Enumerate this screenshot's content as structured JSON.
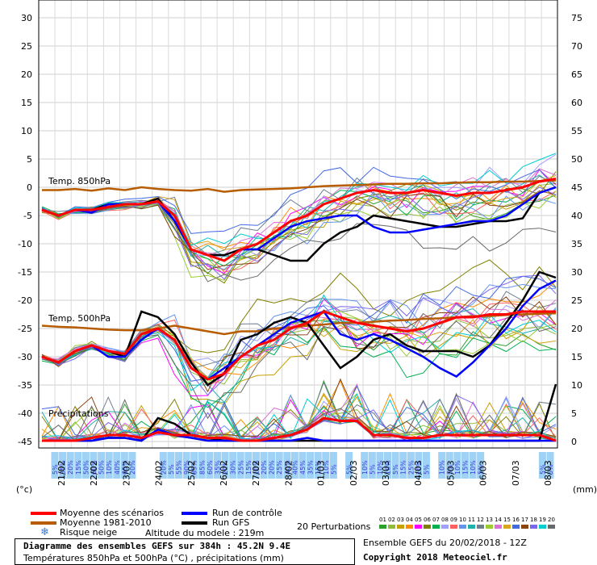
{
  "chart_data": {
    "type": "line",
    "left_axis_unit": "(°c)",
    "right_axis_unit": "(mm)",
    "left_ticks": [
      "30",
      "25",
      "20",
      "15",
      "10",
      "5",
      "0",
      "-5",
      "-10",
      "-15",
      "-20",
      "-25",
      "-30",
      "-35",
      "-40",
      "-45"
    ],
    "right_ticks": [
      "75",
      "70",
      "65",
      "60",
      "55",
      "50",
      "45",
      "40",
      "35",
      "30",
      "25",
      "20",
      "15",
      "10",
      "5",
      "0"
    ],
    "dates": [
      "21/02",
      "22/02",
      "23/02",
      "24/02",
      "25/02",
      "26/02",
      "27/02",
      "28/02",
      "01/03",
      "02/03",
      "03/03",
      "04/03",
      "05/03",
      "06/03",
      "07/03",
      "08/03"
    ],
    "section_labels": {
      "t850": "Temp. 850hPa",
      "t500": "Temp. 500hPa",
      "precip": "Précipitations"
    },
    "snow_risk": [
      "5%",
      "35%",
      "20%",
      "15%",
      "50%",
      "60%",
      "50%",
      "10%",
      "40%",
      "65%",
      "20%",
      "",
      "",
      "",
      "20%",
      "5%",
      "55%",
      "90%",
      "85%",
      "85%",
      "60%",
      "35%",
      "20%",
      "30%",
      "25%",
      "15%",
      "10%",
      "20%",
      "20%",
      "25%",
      "40%",
      "40%",
      "45%",
      "35%",
      "15%",
      "10%",
      "5%",
      "",
      "5%",
      "",
      "10%",
      "5%",
      "10%",
      "10%",
      "5%",
      "15%",
      "25%",
      "10%",
      "5%",
      "",
      "10%",
      "5%",
      "10%",
      "15%",
      "10%",
      "5%",
      "",
      "",
      "",
      "",
      "",
      "",
      "",
      "5%",
      "5%"
    ],
    "series": [
      {
        "name": "Moyenne des scénarios",
        "color": "#ff0000",
        "t850": [
          -4,
          -5,
          -4,
          -4,
          -3.5,
          -3,
          -3,
          -2.5,
          -5,
          -11,
          -12,
          -13,
          -11,
          -10,
          -8,
          -6,
          -5,
          -3,
          -2,
          -1,
          -0.5,
          -1,
          -1,
          -0.5,
          -1,
          -1.5,
          -1,
          -1,
          -0.5,
          0,
          1,
          1.5
        ],
        "t500": [
          -30,
          -31,
          -29,
          -28,
          -29,
          -29.5,
          -26,
          -25,
          -27,
          -32,
          -34,
          -33,
          -30,
          -28,
          -27,
          -25,
          -24,
          -22,
          -23,
          -24,
          -24.5,
          -25,
          -25.5,
          -25,
          -24,
          -23,
          -23,
          -22.5,
          -22.5,
          -22,
          -22,
          -22
        ],
        "precip": [
          0,
          0,
          0,
          0.5,
          1,
          1,
          0.5,
          1.5,
          1,
          1,
          0.5,
          0.5,
          0,
          0,
          0.5,
          1,
          2,
          4,
          3.5,
          3.5,
          1,
          1,
          0.5,
          0.5,
          1,
          1,
          1,
          1,
          1,
          1,
          1,
          0
        ]
      },
      {
        "name": "Moyenne 1981-2010",
        "color": "#b85c00",
        "t850": [
          -0.5,
          -0.5,
          -0.3,
          -0.6,
          -0.2,
          -0.5,
          0,
          -0.3,
          -0.5,
          -0.6,
          -0.3,
          -0.8,
          -0.5,
          -0.4,
          -0.3,
          -0.2,
          0,
          0.2,
          0.3,
          0.4,
          0.5,
          0.6,
          0.6,
          0.7,
          0.7,
          0.8,
          0.9,
          0.9,
          1,
          1,
          1.1,
          1.2
        ],
        "t500": [
          -24.5,
          -24.7,
          -24.8,
          -25,
          -25.2,
          -25.3,
          -25.3,
          -25,
          -24.5,
          -25,
          -25.5,
          -26,
          -25.5,
          -25.5,
          -25,
          -24.8,
          -24.5,
          -24.3,
          -24,
          -24,
          -23.8,
          -23.6,
          -23.5,
          -23.3,
          -23.2,
          -23,
          -22.8,
          -22.8,
          -22.6,
          -22.5,
          -22.4,
          -22.3
        ]
      },
      {
        "name": "Run de contrôle",
        "color": "#0000ff",
        "t850": [
          -4,
          -5,
          -4,
          -4.5,
          -3,
          -3,
          -3,
          -2.5,
          -6,
          -11,
          -12,
          -13,
          -11,
          -11,
          -9,
          -7,
          -6,
          -5.5,
          -5,
          -5,
          -7,
          -8,
          -8,
          -7.5,
          -7,
          -6.5,
          -6,
          -6,
          -5,
          -3,
          -1,
          0
        ],
        "t500": [
          -30,
          -31,
          -29,
          -28,
          -30,
          -30,
          -27,
          -25,
          -27,
          -32,
          -34,
          -32,
          -30,
          -28,
          -26,
          -24,
          -23,
          -22,
          -26,
          -27,
          -26,
          -27,
          -28.5,
          -30,
          -32,
          -33.5,
          -31,
          -28,
          -25,
          -21,
          -18,
          -16.5
        ],
        "precip": [
          0,
          0,
          0,
          0,
          0.5,
          0.5,
          0,
          2,
          1,
          0.5,
          0,
          0,
          0,
          0,
          0,
          0,
          0.5,
          0,
          0,
          0,
          0,
          0,
          0,
          0,
          0,
          0,
          0,
          0,
          0,
          0,
          0,
          0
        ]
      },
      {
        "name": "Run GFS",
        "color": "#000000",
        "t850": [
          -4,
          -5,
          -4,
          -4,
          -3,
          -3,
          -3,
          -2,
          -6,
          -11,
          -12,
          -12,
          -11,
          -11,
          -12,
          -13,
          -13,
          -10,
          -8,
          -7,
          -5,
          -5.5,
          -6,
          -6.5,
          -7,
          -7,
          -6.5,
          -6,
          -6,
          -5.5,
          -1,
          0
        ],
        "t500": [
          -30,
          -31,
          -29,
          -28,
          -29,
          -30,
          -22,
          -23,
          -26,
          -31,
          -35,
          -33,
          -27,
          -26,
          -24,
          -23,
          -24,
          -28,
          -32,
          -30,
          -27,
          -26,
          -28,
          -29,
          -29,
          -29,
          -30,
          -28,
          -24,
          -20,
          -15,
          -16
        ],
        "precip": [
          0,
          0,
          0,
          0,
          0.5,
          0.5,
          0,
          4,
          3,
          1,
          0.5,
          0,
          0,
          0,
          0,
          0,
          0,
          0,
          0,
          0,
          0,
          0,
          0,
          0,
          0,
          0,
          0,
          0,
          0,
          0,
          0,
          10
        ]
      }
    ]
  },
  "legend": {
    "moyenne_scenarios": "Moyenne des scénarios",
    "moyenne_1981": "Moyenne 1981-2010",
    "risque_neige": "Risque neige",
    "run_controle": "Run de contrôle",
    "run_gfs": "Run GFS",
    "altitude": "Altitude du modele : 219m",
    "perturbations_label": "20 Perturbations",
    "perturbation_numbers": [
      "01",
      "02",
      "03",
      "04",
      "05",
      "06",
      "07",
      "08",
      "09",
      "10",
      "11",
      "12",
      "13",
      "14",
      "15",
      "16",
      "17",
      "18",
      "19",
      "20"
    ],
    "perturbation_colors": [
      "#2ca02c",
      "#8fbc3f",
      "#c8a000",
      "#ff8c00",
      "#ff00ff",
      "#808000",
      "#00b050",
      "#a0a0ff",
      "#ff6060",
      "#6495ed",
      "#20b2aa",
      "#708090",
      "#9acd32",
      "#da70d6",
      "#daa520",
      "#4169e1",
      "#8b4513",
      "#7b68ee",
      "#00ced1",
      "#696969"
    ]
  },
  "footer": {
    "title": "Diagramme des ensembles GEFS sur 384h : 45.2N 9.4E",
    "subtitle": "Températures 850hPa et 500hPa (°C) , précipitations (mm)",
    "ensemble": "Ensemble GEFS du 20/02/2018 - 12Z",
    "copyright": "Copyright 2018 Meteociel.fr"
  }
}
